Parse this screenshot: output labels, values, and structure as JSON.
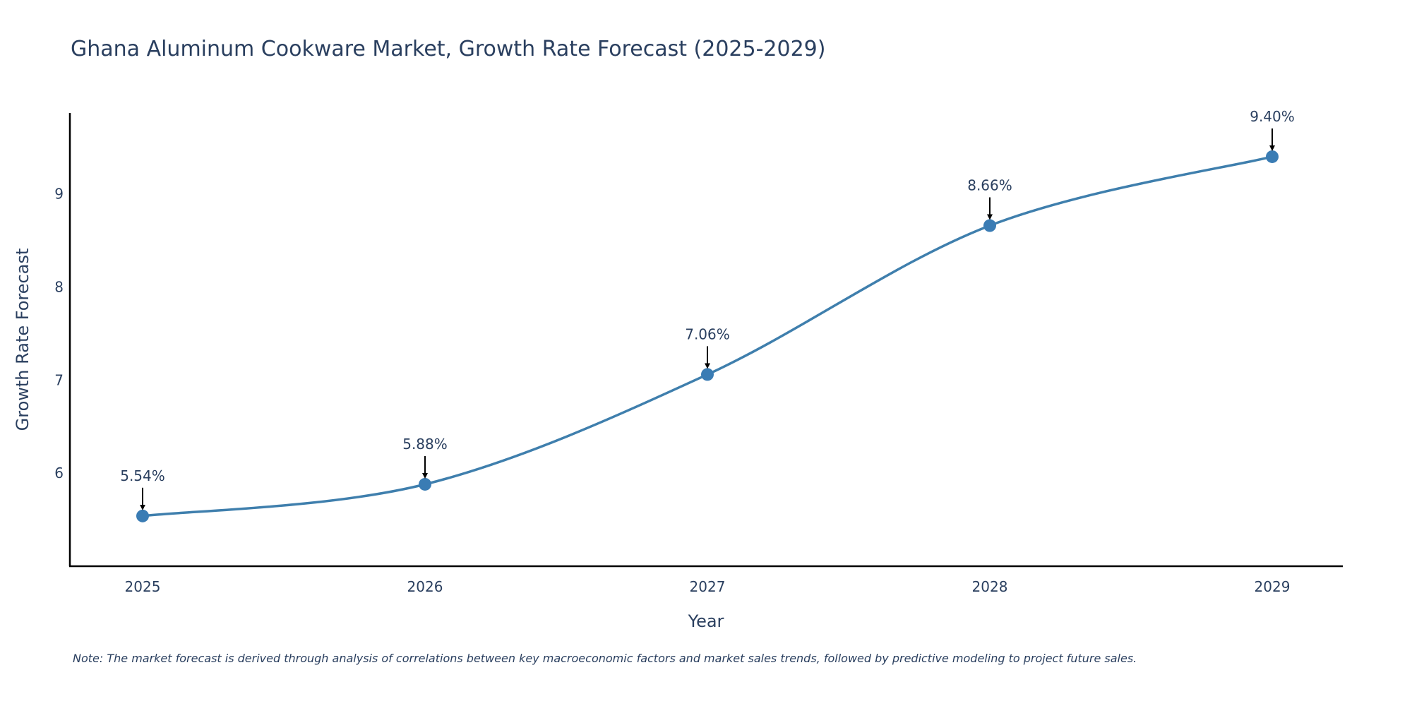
{
  "chart_data": {
    "type": "line",
    "title": "Ghana Aluminum Cookware Market, Growth Rate Forecast (2025-2029)",
    "xlabel": "Year",
    "ylabel": "Growth Rate Forecast",
    "categories": [
      "2025",
      "2026",
      "2027",
      "2028",
      "2029"
    ],
    "values": [
      5.54,
      5.88,
      7.06,
      8.66,
      9.4
    ],
    "labels": [
      "5.54%",
      "5.88%",
      "7.06%",
      "8.66%",
      "9.40%"
    ],
    "ylim": [
      5.0,
      9.87
    ],
    "yticks": [
      6,
      7,
      8,
      9
    ],
    "grid": false,
    "line_shape": "spline",
    "series_color": "#3f7fad",
    "marker_color": "#3a7cb4",
    "note": "Note: The market forecast is derived through analysis of correlations between key macroeconomic factors and market sales trends, followed by predictive modeling to project future sales."
  }
}
